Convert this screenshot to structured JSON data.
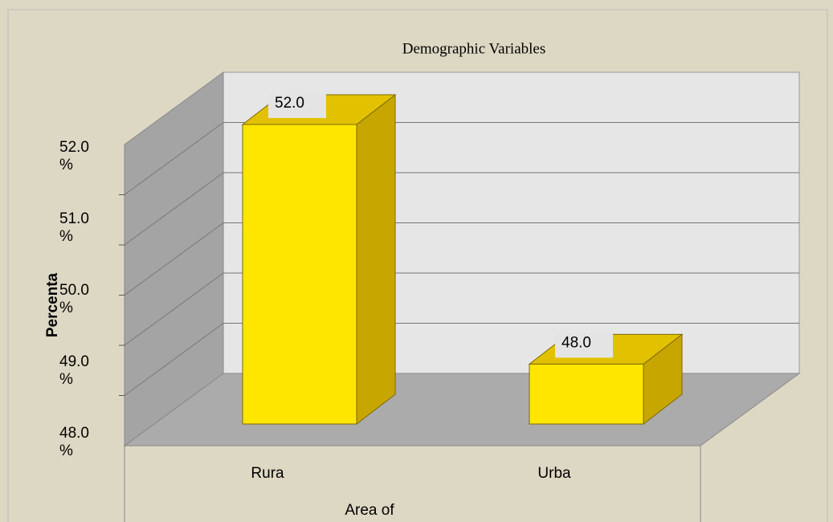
{
  "chart_data": {
    "type": "bar3d",
    "title": "Demographic Variables",
    "x_label": "Area of",
    "y_label": "Percenta",
    "categories": [
      "Rura",
      "Urba"
    ],
    "values": [
      52.0,
      48.0
    ],
    "value_labels": [
      "52.0",
      "48.0"
    ],
    "color": "#ffe600",
    "ylim": [
      47,
      53
    ],
    "yticks": [
      {
        "value": 48,
        "label": "48.0 %"
      },
      {
        "value": 49,
        "label": "49.0 %"
      },
      {
        "value": 50,
        "label": "50.0 %"
      },
      {
        "value": 51,
        "label": "51.0 %"
      },
      {
        "value": 52,
        "label": "52.0 %"
      }
    ],
    "grid": true
  }
}
